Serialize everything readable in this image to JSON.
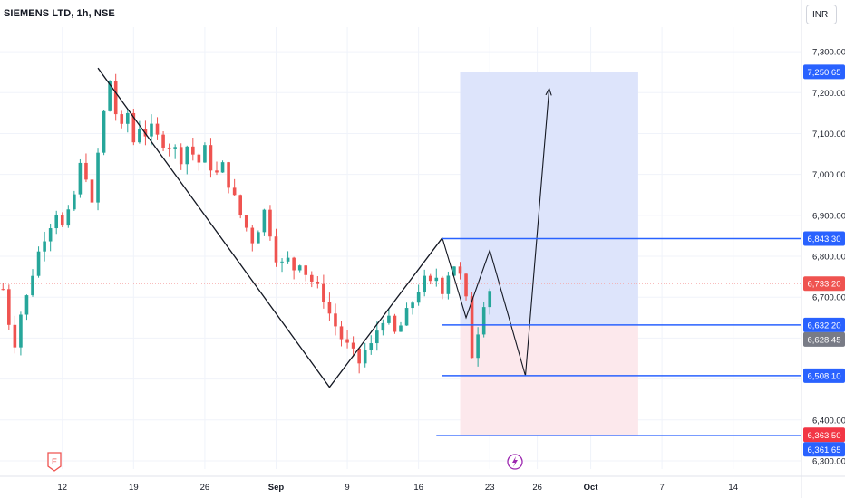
{
  "header": {
    "title": "SIEMENS LTD, 1h, NSE",
    "currency": "INR"
  },
  "colors": {
    "up": "#26a69a",
    "down": "#ef5350",
    "drawing_line": "#2962ff",
    "target_zone": "#dde4fb",
    "stop_zone": "#fce8ec",
    "last_price_line": "#f7a7a7",
    "grid": "#f0f3fa"
  },
  "icons": [
    "earnings-icon",
    "split-icon"
  ],
  "chart_data": {
    "type": "candlestick",
    "ylim": [
      6280,
      7360
    ],
    "y_ticks": [
      7300,
      7200,
      7100,
      7000,
      6900,
      6800,
      6700,
      6400,
      6300
    ],
    "y_tick_labels": [
      "7,300.00",
      "7,200.00",
      "7,100.00",
      "7,000.00",
      "6,900.00",
      "6,800.00",
      "6,700.00",
      "6,400.00",
      "6,300.00"
    ],
    "x_tick_labels": [
      "12",
      "19",
      "26",
      "Sep",
      "9",
      "16",
      "23",
      "26",
      "Oct",
      "7",
      "14"
    ],
    "x_tick_bars": [
      10,
      22,
      34,
      46,
      58,
      70,
      82,
      90,
      99,
      111,
      123
    ],
    "total_bars": 135,
    "price_series": [
      [
        0,
        6720
      ],
      [
        1,
        6640
      ],
      [
        2,
        6590
      ],
      [
        3,
        6660
      ],
      [
        4,
        6700
      ],
      [
        5,
        6760
      ],
      [
        6,
        6810
      ],
      [
        7,
        6850
      ],
      [
        8,
        6880
      ],
      [
        9,
        6910
      ],
      [
        10,
        6870
      ],
      [
        11,
        6900
      ],
      [
        12,
        6950
      ],
      [
        13,
        7020
      ],
      [
        14,
        7000
      ],
      [
        15,
        6920
      ],
      [
        16,
        7050
      ],
      [
        17,
        7150
      ],
      [
        18,
        7230
      ],
      [
        19,
        7150
      ],
      [
        20,
        7110
      ],
      [
        21,
        7150
      ],
      [
        22,
        7080
      ],
      [
        23,
        7120
      ],
      [
        24,
        7100
      ],
      [
        25,
        7110
      ],
      [
        26,
        7090
      ],
      [
        27,
        7080
      ],
      [
        28,
        7070
      ],
      [
        29,
        7060
      ],
      [
        30,
        7040
      ],
      [
        31,
        7070
      ],
      [
        32,
        7050
      ],
      [
        33,
        7030
      ],
      [
        34,
        7060
      ],
      [
        35,
        7020
      ],
      [
        36,
        7000
      ],
      [
        37,
        7020
      ],
      [
        38,
        6980
      ],
      [
        39,
        6940
      ],
      [
        40,
        6900
      ],
      [
        41,
        6870
      ],
      [
        42,
        6840
      ],
      [
        43,
        6870
      ],
      [
        44,
        6910
      ],
      [
        45,
        6860
      ],
      [
        46,
        6800
      ],
      [
        47,
        6780
      ],
      [
        48,
        6790
      ],
      [
        49,
        6770
      ],
      [
        50,
        6790
      ],
      [
        51,
        6760
      ],
      [
        52,
        6740
      ],
      [
        53,
        6720
      ],
      [
        54,
        6700
      ],
      [
        55,
        6660
      ],
      [
        56,
        6630
      ],
      [
        57,
        6600
      ],
      [
        58,
        6580
      ],
      [
        59,
        6560
      ],
      [
        60,
        6540
      ],
      [
        61,
        6570
      ],
      [
        62,
        6580
      ],
      [
        63,
        6620
      ],
      [
        64,
        6650
      ],
      [
        65,
        6640
      ],
      [
        66,
        6610
      ],
      [
        67,
        6630
      ],
      [
        68,
        6660
      ],
      [
        69,
        6690
      ],
      [
        70,
        6720
      ],
      [
        71,
        6740
      ],
      [
        72,
        6730
      ],
      [
        73,
        6750
      ],
      [
        74,
        6720
      ],
      [
        75,
        6760
      ],
      [
        76,
        6780
      ],
      [
        77,
        6750
      ],
      [
        78,
        6690
      ],
      [
        79,
        6560
      ],
      [
        80,
        6620
      ],
      [
        81,
        6690
      ],
      [
        82,
        6720
      ]
    ],
    "last_price": 6733.2,
    "pattern_path": [
      [
        16,
        7260
      ],
      [
        55,
        6480
      ],
      [
        74,
        6845
      ]
    ],
    "projection_path": [
      [
        74,
        6845
      ],
      [
        78,
        6650
      ],
      [
        82,
        6815
      ],
      [
        88,
        6508
      ],
      [
        92,
        7210
      ]
    ],
    "horizontal_lines": [
      {
        "price": 6843.3,
        "label": "6,843.30",
        "x_from": 74
      },
      {
        "price": 6632.2,
        "label": "6,632.20",
        "x_from": 74
      },
      {
        "price": 6508.1,
        "label": "6,508.10",
        "x_from": 74
      },
      {
        "price": 6361.65,
        "label": "6,361.65",
        "x_from": 73
      }
    ],
    "target_zone": {
      "top": 7250.65,
      "bottom": 6632.2,
      "x_from": 77,
      "x_to": 107
    },
    "stop_zone": {
      "top": 6632.2,
      "bottom": 6363.5,
      "x_from": 77,
      "x_to": 107
    },
    "price_badges": [
      {
        "price": 7250.65,
        "label": "7,250.65",
        "color": "#2962ff"
      },
      {
        "price": 6843.3,
        "label": "6,843.30",
        "color": "#2962ff"
      },
      {
        "price": 6733.2,
        "label": "6,733.20",
        "color": "#ef5350"
      },
      {
        "price": 6632.2,
        "label": "6,632.20",
        "color": "#2962ff"
      },
      {
        "price": 6628.45,
        "label": "6,628.45",
        "color": "#787b86"
      },
      {
        "price": 6508.1,
        "label": "6,508.10",
        "color": "#2962ff"
      },
      {
        "price": 6363.5,
        "label": "6,363.50",
        "color": "#f23645"
      },
      {
        "price": 6361.65,
        "label": "6,361.65",
        "color": "#2962ff"
      }
    ]
  }
}
